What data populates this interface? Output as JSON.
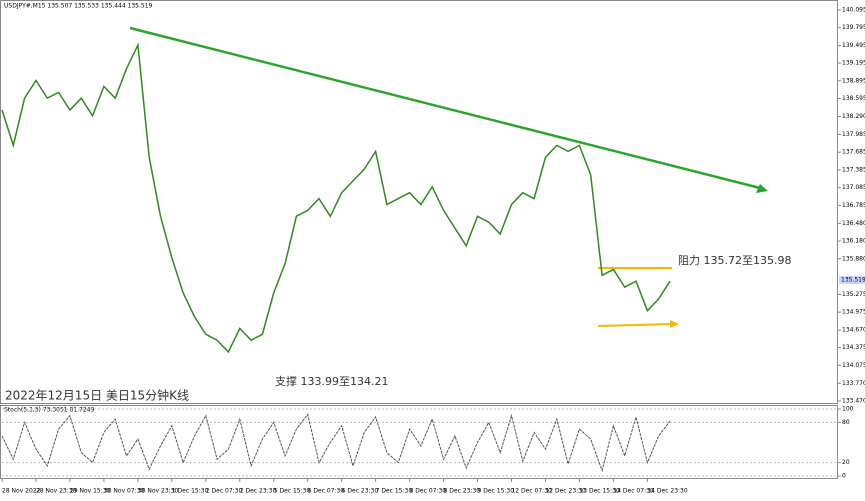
{
  "chart_data": [
    {
      "type": "line",
      "header": "USDJPY#,M15 135.507 135.533 135.444 135.519",
      "color": "#2e8b1e",
      "categories": [
        "28 Nov 2022",
        null,
        null,
        "28 Nov 23:30",
        null,
        null,
        "29 Nov 15:30",
        null,
        null,
        "30 Nov 07:30",
        null,
        null,
        "30 Nov 23:30",
        null,
        null,
        "1 Dec 15:30",
        null,
        null,
        "2 Dec 07:30",
        null,
        null,
        "2 Dec 23:30",
        null,
        null,
        "5 Dec 15:30",
        null,
        null,
        "6 Dec 07:30",
        null,
        null,
        "6 Dec 23:30",
        null,
        null,
        "7 Dec 15:30",
        null,
        null,
        "8 Dec 07:30",
        null,
        null,
        "8 Dec 23:30",
        null,
        null,
        "9 Dec 15:30",
        null,
        null,
        "12 Dec 07:30",
        null,
        null,
        "12 Dec 23:30",
        null,
        null,
        "13 Dec 15:30",
        null,
        null,
        "14 Dec 07:30",
        null,
        null,
        "14 Dec 23:30",
        null,
        null
      ],
      "values": [
        138.4,
        137.8,
        138.6,
        138.9,
        138.6,
        138.7,
        138.4,
        138.6,
        138.3,
        138.8,
        138.6,
        139.1,
        139.5,
        137.6,
        136.6,
        135.9,
        135.3,
        134.9,
        134.6,
        134.5,
        134.3,
        134.7,
        134.5,
        134.6,
        135.3,
        135.8,
        136.6,
        136.7,
        136.9,
        136.6,
        137.0,
        137.2,
        137.4,
        137.7,
        136.8,
        136.9,
        137.0,
        136.8,
        137.1,
        136.7,
        136.4,
        136.1,
        136.6,
        136.5,
        136.3,
        136.8,
        137.0,
        136.9,
        137.6,
        137.8,
        137.7,
        137.8,
        137.3,
        135.6,
        135.7,
        135.4,
        135.5,
        135.0,
        135.2,
        135.5
      ],
      "ylim": [
        133.47,
        140.095
      ],
      "yticks": [
        {
          "value": 133.47,
          "label": "133.470"
        },
        {
          "value": 133.77,
          "label": "133.770"
        },
        134.075,
        134.375,
        {
          "value": 134.67,
          "label": "134.670"
        },
        134.975,
        135.275,
        {
          "value": 135.88,
          "label": "135.880"
        },
        {
          "value": 136.18,
          "label": "136.180"
        },
        {
          "value": 136.48,
          "label": "136.480"
        },
        136.785,
        137.085,
        137.385,
        137.685,
        137.985,
        {
          "value": 138.29,
          "label": "138.290"
        },
        138.595,
        138.895,
        139.195,
        139.495,
        139.795,
        140.095
      ],
      "current_price": 135.519,
      "annotations": [
        "阻力 135.72至135.98",
        "支撑 133.99至134.21",
        "2022年12月15日 美日15分钟K线"
      ]
    },
    {
      "type": "line",
      "header": "Stoch(5,3,3) 73.3051 81.7249",
      "color": "#555555",
      "values": [
        60,
        25,
        80,
        40,
        15,
        70,
        90,
        35,
        20,
        65,
        85,
        30,
        55,
        10,
        45,
        75,
        20,
        60,
        90,
        25,
        40,
        85,
        15,
        55,
        80,
        30,
        70,
        92,
        20,
        50,
        75,
        15,
        65,
        88,
        35,
        20,
        70,
        45,
        85,
        25,
        60,
        12,
        50,
        80,
        35,
        90,
        22,
        65,
        40,
        85,
        18,
        70,
        55,
        8,
        75,
        30,
        88,
        20,
        60,
        82
      ],
      "ylim": [
        0,
        100
      ],
      "yticks": [
        0,
        20,
        80,
        100
      ]
    }
  ]
}
